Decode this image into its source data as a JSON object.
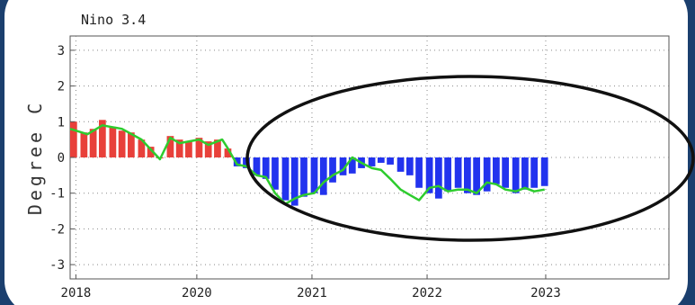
{
  "chart_data": {
    "type": "bar",
    "title": "Nino 3.4",
    "ylabel": "Degree C",
    "xlabel": "",
    "ylim": [
      -3.4,
      3.4
    ],
    "yticks": [
      -3,
      -2,
      -1,
      0,
      1,
      2,
      3
    ],
    "xlim": [
      2017.8,
      2023.0
    ],
    "xticks": [
      {
        "value": 2017.85,
        "label": "2018"
      },
      {
        "value": 2018.9,
        "label": "2020"
      },
      {
        "value": 2019.9,
        "label": "2021"
      },
      {
        "value": 2020.9,
        "label": "2022"
      },
      {
        "value": 2021.93,
        "label": "2023"
      }
    ],
    "grid": "dotted",
    "colors": {
      "positive_bar": "#e8403a",
      "negative_bar": "#2233ee",
      "line": "#2ecc2e",
      "frame": "#1b3f6e",
      "background": "#ffffff",
      "text": "#222222"
    },
    "series": [
      {
        "kind": "bars",
        "x": [
          2017.83,
          2017.92,
          2018.0,
          2018.08,
          2018.17,
          2018.25,
          2018.33,
          2018.42,
          2018.5,
          2018.58,
          2018.67,
          2018.75,
          2018.83,
          2018.92,
          2019.0,
          2019.08,
          2019.17,
          2019.25,
          2019.33,
          2019.42,
          2019.5,
          2019.58,
          2019.67,
          2019.75,
          2019.83,
          2019.92,
          2020.0,
          2020.08,
          2020.17,
          2020.25,
          2020.33,
          2020.42,
          2020.5,
          2020.58,
          2020.67,
          2020.75,
          2020.83,
          2020.92,
          2021.0,
          2021.08,
          2021.17,
          2021.25,
          2021.33,
          2021.42,
          2021.5,
          2021.58,
          2021.67,
          2021.75,
          2021.83,
          2021.92
        ],
        "values": [
          1.0,
          0.7,
          0.8,
          1.05,
          0.85,
          0.75,
          0.7,
          0.5,
          0.3,
          0.0,
          0.6,
          0.5,
          0.45,
          0.55,
          0.45,
          0.5,
          0.25,
          -0.25,
          -0.3,
          -0.5,
          -0.6,
          -0.9,
          -1.2,
          -1.35,
          -1.1,
          -1.0,
          -1.05,
          -0.7,
          -0.5,
          -0.45,
          -0.3,
          -0.25,
          -0.15,
          -0.2,
          -0.4,
          -0.5,
          -0.85,
          -1.0,
          -1.15,
          -0.95,
          -0.85,
          -1.0,
          -1.05,
          -0.95,
          -0.75,
          -0.85,
          -1.0,
          -0.9,
          -0.85,
          -0.8
        ]
      },
      {
        "kind": "line",
        "x": [
          2017.8,
          2017.95,
          2018.08,
          2018.25,
          2018.42,
          2018.58,
          2018.67,
          2018.75,
          2018.92,
          2019.0,
          2019.12,
          2019.17,
          2019.25,
          2019.33,
          2019.42,
          2019.5,
          2019.58,
          2019.67,
          2019.75,
          2019.83,
          2019.92,
          2020.0,
          2020.08,
          2020.17,
          2020.25,
          2020.33,
          2020.42,
          2020.5,
          2020.58,
          2020.67,
          2020.75,
          2020.83,
          2020.92,
          2021.0,
          2021.08,
          2021.17,
          2021.25,
          2021.33,
          2021.42,
          2021.5,
          2021.58,
          2021.67,
          2021.75,
          2021.83,
          2021.92
        ],
        "values": [
          0.8,
          0.65,
          0.9,
          0.8,
          0.5,
          -0.05,
          0.55,
          0.4,
          0.5,
          0.35,
          0.5,
          0.25,
          -0.2,
          -0.25,
          -0.5,
          -0.55,
          -1.0,
          -1.3,
          -1.15,
          -1.05,
          -1.0,
          -0.7,
          -0.5,
          -0.35,
          0.0,
          -0.15,
          -0.3,
          -0.35,
          -0.6,
          -0.9,
          -1.05,
          -1.2,
          -0.85,
          -0.8,
          -0.95,
          -0.9,
          -0.9,
          -1.0,
          -0.7,
          -0.75,
          -0.9,
          -0.95,
          -0.85,
          -0.95,
          -0.9
        ]
      }
    ],
    "annotation": {
      "shape": "ellipse",
      "color": "#111111"
    }
  }
}
